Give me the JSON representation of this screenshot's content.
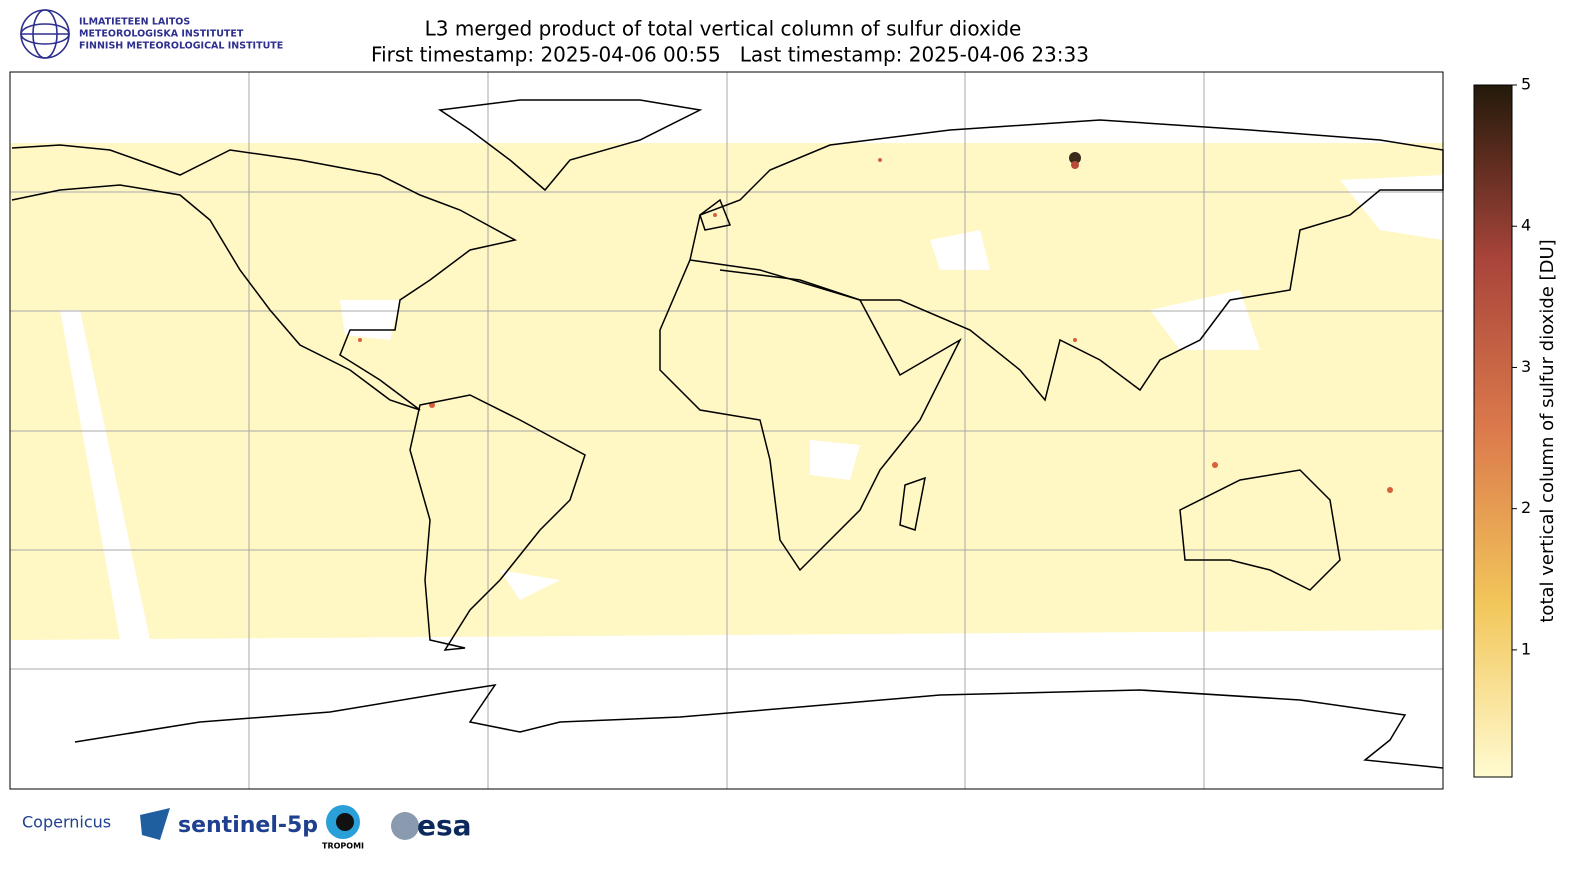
{
  "header": {
    "title": "L3 merged product of total vertical column of sulfur dioxide",
    "subtitle": "First timestamp: 2025-04-06 00:55   Last timestamp: 2025-04-06 23:33"
  },
  "logos": {
    "institute": [
      "ILMATIETEEN LAITOS",
      "METEOROLOGISKA INSTITUTET",
      "FINNISH METEOROLOGICAL INSTITUTE"
    ],
    "copernicus": "Copernicus",
    "sentinel": "sentinel-5p",
    "tropomi": "TROPOMI",
    "esa": "esa"
  },
  "colorbar": {
    "label": "total vertical column of sulfur dioxide [DU]",
    "lim": [
      0.1,
      5
    ],
    "ticks": [
      1,
      2,
      3,
      4,
      5
    ],
    "colors": [
      "#fffbd0",
      "#f2c65a",
      "#dc7a4c",
      "#a8443a",
      "#231a0a"
    ]
  }
}
